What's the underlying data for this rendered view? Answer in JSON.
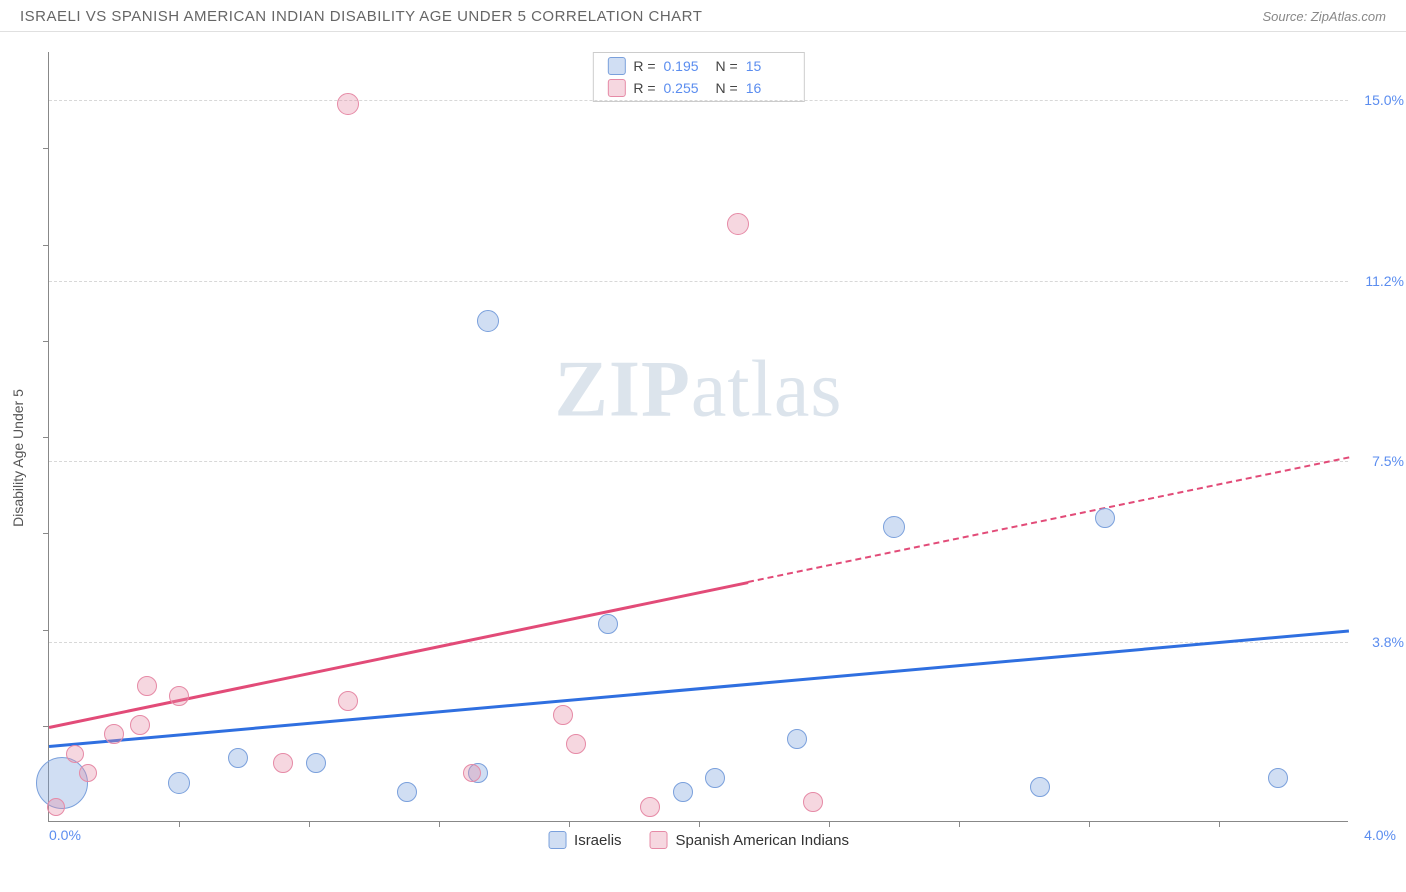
{
  "header": {
    "title": "ISRAELI VS SPANISH AMERICAN INDIAN DISABILITY AGE UNDER 5 CORRELATION CHART",
    "source_prefix": "Source: ",
    "source_name": "ZipAtlas.com"
  },
  "watermark": {
    "part1": "ZIP",
    "part2": "atlas"
  },
  "chart": {
    "type": "scatter",
    "ylabel": "Disability Age Under 5",
    "background_color": "#ffffff",
    "grid_color": "#d8d8d8",
    "xlim": [
      0.0,
      4.0
    ],
    "ylim": [
      0.0,
      16.0
    ],
    "x_ticks_minor": [
      0.4,
      0.8,
      1.2,
      1.6,
      2.0,
      2.4,
      2.8,
      3.2,
      3.6
    ],
    "y_gridlines": [
      3.75,
      7.5,
      11.25,
      15.0
    ],
    "y_tick_labels": [
      "3.8%",
      "7.5%",
      "11.2%",
      "15.0%"
    ],
    "x_axis_labels": {
      "left": "0.0%",
      "right": "4.0%"
    },
    "y_tick_minor": [
      2.0,
      4.0,
      6.0,
      8.0,
      10.0,
      12.0,
      14.0
    ],
    "series": [
      {
        "name": "Israelis",
        "color_fill": "rgba(120,160,220,0.35)",
        "color_stroke": "#7aa0dc",
        "trend_color": "#2f6fe0",
        "trend": {
          "x1": 0.0,
          "y1": 1.6,
          "x2": 4.0,
          "y2": 4.0,
          "dash_after_x": null
        },
        "points": [
          {
            "x": 0.04,
            "y": 0.8,
            "r": 26
          },
          {
            "x": 0.4,
            "y": 0.8,
            "r": 11
          },
          {
            "x": 0.58,
            "y": 1.3,
            "r": 10
          },
          {
            "x": 0.82,
            "y": 1.2,
            "r": 10
          },
          {
            "x": 1.1,
            "y": 0.6,
            "r": 10
          },
          {
            "x": 1.32,
            "y": 1.0,
            "r": 10
          },
          {
            "x": 1.35,
            "y": 10.4,
            "r": 11
          },
          {
            "x": 1.72,
            "y": 4.1,
            "r": 10
          },
          {
            "x": 1.95,
            "y": 0.6,
            "r": 10
          },
          {
            "x": 2.05,
            "y": 0.9,
            "r": 10
          },
          {
            "x": 2.3,
            "y": 1.7,
            "r": 10
          },
          {
            "x": 2.6,
            "y": 6.1,
            "r": 11
          },
          {
            "x": 3.05,
            "y": 0.7,
            "r": 10
          },
          {
            "x": 3.25,
            "y": 6.3,
            "r": 10
          },
          {
            "x": 3.78,
            "y": 0.9,
            "r": 10
          }
        ]
      },
      {
        "name": "Spanish American Indians",
        "color_fill": "rgba(230,140,165,0.35)",
        "color_stroke": "#e68aa6",
        "trend_color": "#e24b78",
        "trend": {
          "x1": 0.0,
          "y1": 2.0,
          "x2": 4.0,
          "y2": 7.6,
          "dash_after_x": 2.15
        },
        "points": [
          {
            "x": 0.02,
            "y": 0.3,
            "r": 9
          },
          {
            "x": 0.08,
            "y": 1.4,
            "r": 9
          },
          {
            "x": 0.12,
            "y": 1.0,
            "r": 9
          },
          {
            "x": 0.2,
            "y": 1.8,
            "r": 10
          },
          {
            "x": 0.28,
            "y": 2.0,
            "r": 10
          },
          {
            "x": 0.3,
            "y": 2.8,
            "r": 10
          },
          {
            "x": 0.4,
            "y": 2.6,
            "r": 10
          },
          {
            "x": 0.72,
            "y": 1.2,
            "r": 10
          },
          {
            "x": 0.92,
            "y": 14.9,
            "r": 11
          },
          {
            "x": 0.92,
            "y": 2.5,
            "r": 10
          },
          {
            "x": 1.3,
            "y": 1.0,
            "r": 9
          },
          {
            "x": 1.58,
            "y": 2.2,
            "r": 10
          },
          {
            "x": 1.62,
            "y": 1.6,
            "r": 10
          },
          {
            "x": 1.85,
            "y": 0.3,
            "r": 10
          },
          {
            "x": 2.12,
            "y": 12.4,
            "r": 11
          },
          {
            "x": 2.35,
            "y": 0.4,
            "r": 10
          }
        ]
      }
    ],
    "legend_top": [
      {
        "swatch_fill": "rgba(120,160,220,0.35)",
        "swatch_stroke": "#7aa0dc",
        "r_label": "R  =",
        "r_value": "0.195",
        "n_label": "N  =",
        "n_value": "15"
      },
      {
        "swatch_fill": "rgba(230,140,165,0.35)",
        "swatch_stroke": "#e68aa6",
        "r_label": "R  =",
        "r_value": "0.255",
        "n_label": "N  =",
        "n_value": "16"
      }
    ],
    "legend_bottom": [
      {
        "swatch_fill": "rgba(120,160,220,0.35)",
        "swatch_stroke": "#7aa0dc",
        "label": "Israelis"
      },
      {
        "swatch_fill": "rgba(230,140,165,0.35)",
        "swatch_stroke": "#e68aa6",
        "label": "Spanish American Indians"
      }
    ]
  }
}
